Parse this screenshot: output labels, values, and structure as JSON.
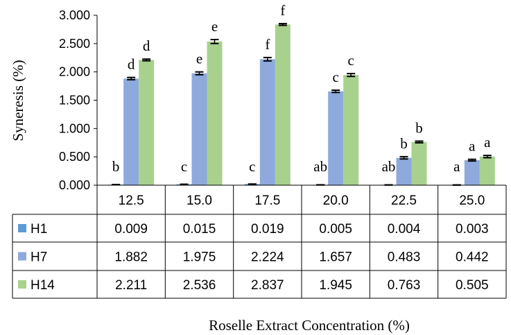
{
  "chart_data": {
    "type": "bar",
    "ylabel": "Syneresis (%)",
    "xlabel": "Roselle Extract Concentration (%)",
    "ylim": [
      0,
      3
    ],
    "y_ticks": [
      "0.000",
      "0.500",
      "1.000",
      "1.500",
      "2.000",
      "2.500",
      "3.000"
    ],
    "categories": [
      "12.5",
      "15.0",
      "17.5",
      "20.0",
      "22.5",
      "25.0"
    ],
    "error_bars": true,
    "data_table": true,
    "series": [
      {
        "name": "H1",
        "color": "#5B9BD5",
        "values": [
          0.009,
          0.015,
          0.019,
          0.005,
          0.004,
          0.003
        ],
        "labels": [
          "0.009",
          "0.015",
          "0.019",
          "0.005",
          "0.004",
          "0.003"
        ],
        "errors": [
          0.002,
          0.002,
          0.002,
          0.002,
          0.002,
          0.002
        ],
        "letters": [
          "b",
          "c",
          "c",
          "ab",
          "ab",
          "a"
        ]
      },
      {
        "name": "H7",
        "color": "#8EA9DB",
        "values": [
          1.882,
          1.975,
          2.224,
          1.657,
          0.483,
          0.442
        ],
        "labels": [
          "1.882",
          "1.975",
          "2.224",
          "1.657",
          "0.483",
          "0.442"
        ],
        "errors": [
          0.02,
          0.025,
          0.03,
          0.02,
          0.02,
          0.015
        ],
        "letters": [
          "d",
          "e",
          "f",
          "c",
          "b",
          "a"
        ]
      },
      {
        "name": "H14",
        "color": "#A9D18E",
        "values": [
          2.211,
          2.536,
          2.837,
          1.945,
          0.763,
          0.505
        ],
        "labels": [
          "2.211",
          "2.536",
          "2.837",
          "1.945",
          "0.763",
          "0.505"
        ],
        "errors": [
          0.015,
          0.035,
          0.015,
          0.025,
          0.015,
          0.02
        ],
        "letters": [
          "d",
          "e",
          "f",
          "c",
          "b",
          "a"
        ]
      }
    ]
  }
}
